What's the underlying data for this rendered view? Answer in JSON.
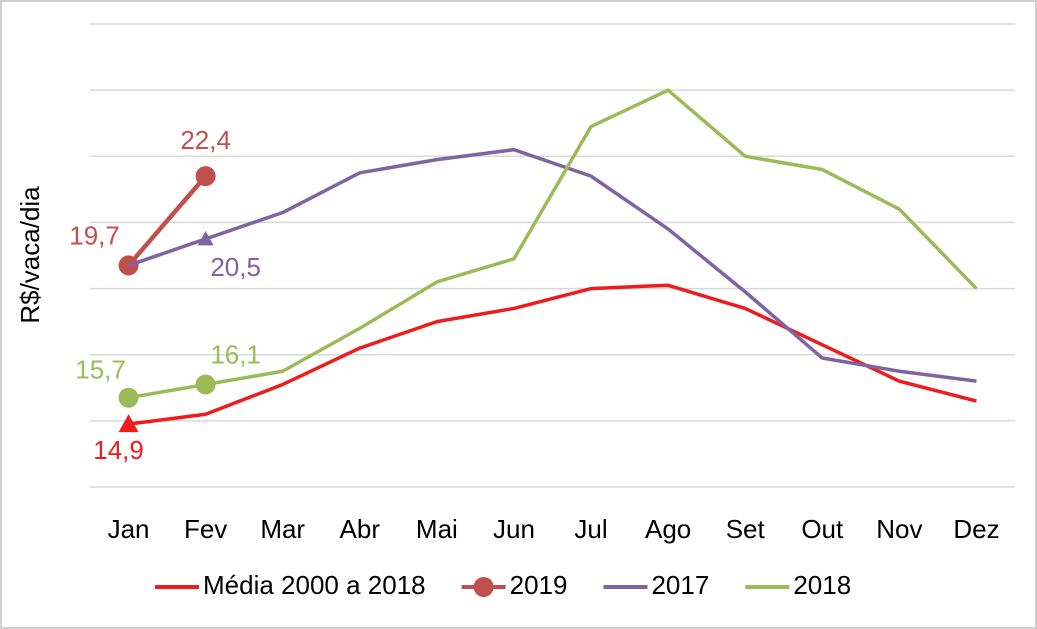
{
  "chart_data": {
    "type": "line",
    "y_label": "R$/vaca/dia",
    "categories": [
      "Jan",
      "Fev",
      "Mar",
      "Abr",
      "Mai",
      "Jun",
      "Jul",
      "Ago",
      "Set",
      "Out",
      "Nov",
      "Dez"
    ],
    "ylim": [
      13,
      27
    ],
    "yticks": [
      13,
      15,
      17,
      19,
      21,
      23,
      25,
      27
    ],
    "grid": true,
    "legend": "bottom",
    "series": [
      {
        "name": "Média 2000 a 2018",
        "color": "#ee1c1c",
        "values": [
          14.9,
          15.2,
          16.1,
          17.2,
          18.0,
          18.4,
          19.0,
          19.1,
          18.4,
          17.3,
          16.2,
          15.6
        ],
        "value_labels": [
          "14,9",
          null,
          null,
          null,
          null,
          null,
          null,
          null,
          null,
          null,
          null,
          null
        ]
      },
      {
        "name": "2019",
        "color": "#c0504d",
        "values": [
          19.7,
          22.4,
          null,
          null,
          null,
          null,
          null,
          null,
          null,
          null,
          null,
          null
        ],
        "value_labels": [
          "19,7",
          "22,4",
          null,
          null,
          null,
          null,
          null,
          null,
          null,
          null,
          null,
          null
        ]
      },
      {
        "name": "2017",
        "color": "#8064a2",
        "values": [
          19.7,
          20.5,
          21.3,
          22.5,
          22.9,
          23.2,
          22.4,
          20.8,
          18.9,
          16.9,
          16.5,
          16.2
        ],
        "value_labels": [
          null,
          "20,5",
          null,
          null,
          null,
          null,
          null,
          null,
          null,
          null,
          null,
          null
        ]
      },
      {
        "name": "2018",
        "color": "#9bbb59",
        "values": [
          15.7,
          16.1,
          16.5,
          17.8,
          19.2,
          19.9,
          23.9,
          25.0,
          23.0,
          22.6,
          21.4,
          19.0
        ],
        "value_labels": [
          "15,7",
          "16,1",
          null,
          null,
          null,
          null,
          null,
          null,
          null,
          null,
          null,
          null
        ]
      }
    ]
  }
}
